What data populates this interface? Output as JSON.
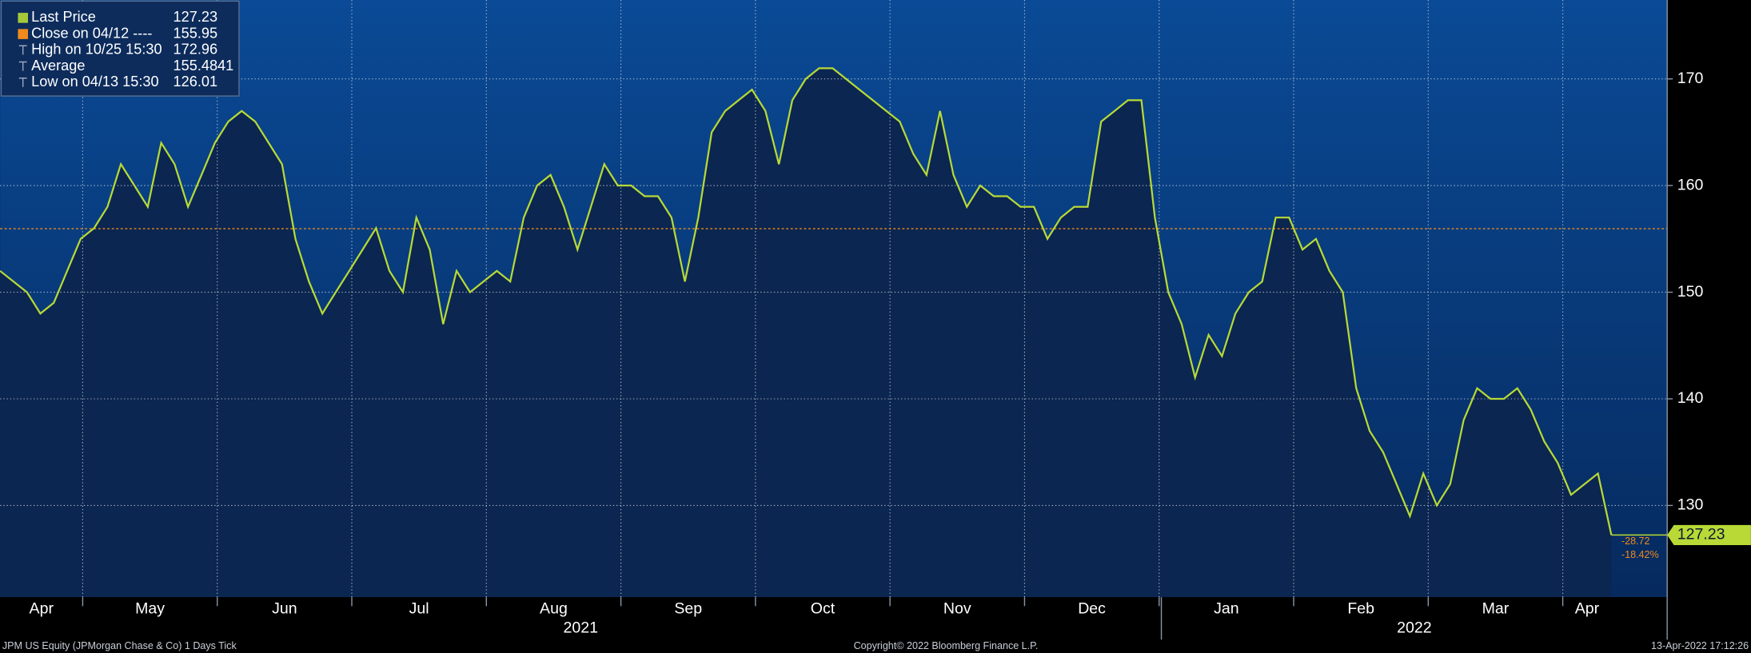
{
  "chart_data": {
    "type": "line",
    "legend": [
      {
        "name": "Last Price",
        "value": 127.23,
        "color": "#a6c93a"
      },
      {
        "name": "Close on 04/12 ----",
        "value": 155.95,
        "color": "#f08a1c"
      },
      {
        "name": "High on 10/25 15:30",
        "value": 172.96,
        "color": "#9aa7b8"
      },
      {
        "name": "Average",
        "value": 155.4841,
        "color": "#9aa7b8"
      },
      {
        "name": "Low on 04/13 15:30",
        "value": 126.01,
        "color": "#9aa7b8"
      }
    ],
    "values": [
      152,
      151,
      150,
      148,
      149,
      152,
      155,
      156,
      158,
      162,
      160,
      158,
      164,
      162,
      158,
      161,
      164,
      166,
      167,
      166,
      164,
      162,
      155,
      151,
      148,
      150,
      152,
      154,
      156,
      152,
      150,
      157,
      154,
      147,
      152,
      150,
      151,
      152,
      151,
      157,
      160,
      161,
      158,
      154,
      158,
      162,
      160,
      160,
      159,
      159,
      157,
      151,
      157,
      165,
      167,
      168,
      169,
      167,
      162,
      168,
      170,
      171,
      171,
      170,
      169,
      168,
      167,
      166,
      163,
      161,
      167,
      161,
      158,
      160,
      159,
      159,
      158,
      158,
      155,
      157,
      158,
      158,
      166,
      167,
      168,
      168,
      157,
      150,
      147,
      142,
      146,
      144,
      148,
      150,
      151,
      157,
      157,
      154,
      155,
      152,
      150,
      141,
      137,
      135,
      132,
      129,
      133,
      130,
      132,
      138,
      141,
      140,
      140,
      141,
      139,
      136,
      134,
      131,
      132,
      133,
      127.23
    ],
    "color": "#b8d936",
    "ylim": [
      121.4,
      177.4
    ],
    "yticks": [
      130,
      140,
      150,
      160,
      170
    ],
    "grid": true,
    "months": [
      "Apr",
      "May",
      "Jun",
      "Jul",
      "Aug",
      "Sep",
      "Oct",
      "Nov",
      "Dec",
      "Jan",
      "Feb",
      "Mar",
      "Apr"
    ],
    "years": [
      "2021",
      "2022"
    ],
    "change": {
      "value": -28.72,
      "percent": {
        "value": -18.42,
        "label": "-18.42%"
      }
    },
    "footer_left": "JPM US Equity (JPMorgan Chase & Co) 1 Days  Tick",
    "copyright": "Copyright© 2022 Bloomberg Finance L.P.",
    "timestamp": "13-Apr-2022 17:12:26"
  }
}
